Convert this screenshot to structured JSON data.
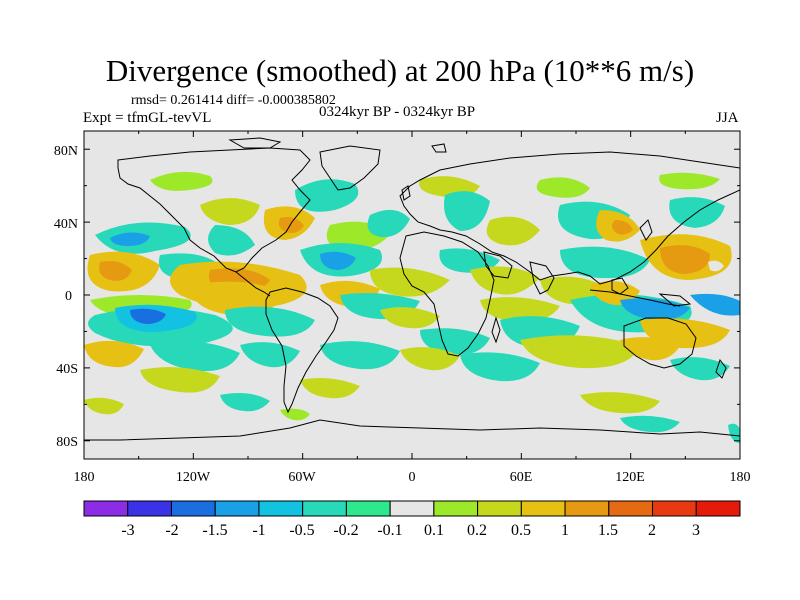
{
  "title": "Divergence (smoothed) at 200 hPa (10**6 m/s)",
  "stats_line": "rmsd= 0.261414  diff= -0.000385802",
  "left_label": "Expt = tfmGL-tevVL",
  "center_label": "0324kyr BP - 0324kyr BP",
  "right_label": "JJA",
  "map": {
    "projection": "cylindrical equidistant",
    "lon_range": [
      -180,
      180
    ],
    "lat_range": [
      -90,
      90
    ],
    "y_tick_labels": [
      "80N",
      "40N",
      "0",
      "40S",
      "80S"
    ],
    "x_tick_labels": [
      "180",
      "120W",
      "60W",
      "0",
      "60E",
      "120E",
      "180"
    ],
    "background_color": "#e6e6e6",
    "coastline_color": "#000000"
  },
  "colorbar": {
    "labels": [
      "-3",
      "-2",
      "-1.5",
      "-1",
      "-0.5",
      "-0.2",
      "-0.1",
      "0.1",
      "0.2",
      "0.5",
      "1",
      "1.5",
      "2",
      "3"
    ],
    "colors": [
      "#8c2ce6",
      "#3a32e6",
      "#1a6fe0",
      "#1aa0e6",
      "#12c2e0",
      "#28d9b9",
      "#2ee890",
      "#e6e6e6",
      "#9ee82a",
      "#c6d81e",
      "#e6c012",
      "#e69a12",
      "#e66a12",
      "#e83a12",
      "#e61a0a"
    ]
  }
}
